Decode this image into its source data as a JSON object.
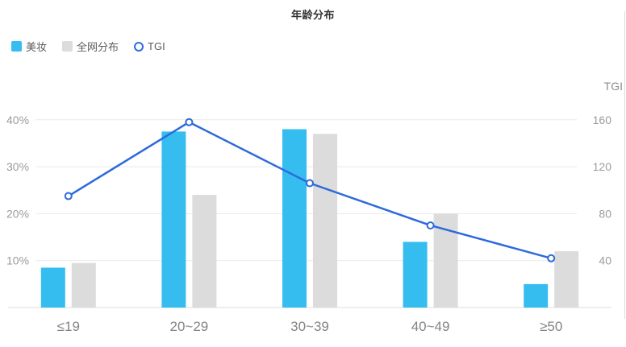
{
  "title": "年龄分布",
  "legend": {
    "items": [
      {
        "label": "美妆",
        "marker": "square",
        "color": "#36bdf0"
      },
      {
        "label": "全网分布",
        "marker": "square",
        "color": "#dcdcdc"
      },
      {
        "label": "TGI",
        "marker": "ring",
        "color": "#2d6adb"
      }
    ]
  },
  "colors": {
    "bar_primary": "#36bdf0",
    "bar_secondary": "#dcdcdc",
    "line": "#2d6adb",
    "grid": "#e9e9e9",
    "axis_line": "#dddddd",
    "y_label": "#9b9b9b",
    "x_label": "#848484",
    "axis_name": "#8c8c8c",
    "title": "#333333"
  },
  "chart_data": {
    "type": "bar",
    "subtype": "grouped-bars-with-line",
    "title": "年龄分布",
    "categories": [
      "≤19",
      "20~29",
      "30~39",
      "40~49",
      "≥50"
    ],
    "series": [
      {
        "name": "美妆",
        "type": "bar",
        "axis": "left",
        "unit": "%",
        "color": "#36bdf0",
        "values": [
          8.5,
          37.5,
          38,
          14,
          5
        ]
      },
      {
        "name": "全网分布",
        "type": "bar",
        "axis": "left",
        "unit": "%",
        "color": "#dcdcdc",
        "values": [
          9.5,
          24,
          37,
          20,
          12
        ]
      },
      {
        "name": "TGI",
        "type": "line",
        "axis": "right",
        "color": "#2d6adb",
        "values": [
          95,
          158,
          106,
          70,
          42
        ]
      }
    ],
    "left_axis": {
      "min": 0,
      "max": 40,
      "unit": "%",
      "tick_labels": [
        "10%",
        "20%",
        "30%",
        "40%"
      ],
      "tick_values": [
        10,
        20,
        30,
        40
      ]
    },
    "right_axis": {
      "name": "TGI",
      "min": 0,
      "max": 160,
      "tick_labels": [
        "40",
        "80",
        "120",
        "160"
      ],
      "tick_values": [
        40,
        80,
        120,
        160
      ]
    },
    "grid": true,
    "legend_position": "top-left"
  }
}
